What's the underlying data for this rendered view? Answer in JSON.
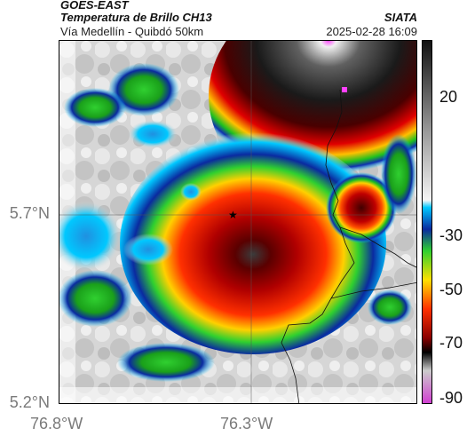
{
  "header": {
    "satellite": "GOES-EAST",
    "product": "Temperatura de Brillo CH13",
    "route": "Vía Medellín - Quibdó 50km",
    "organization": "SIATA",
    "timestamp": "2025-02-28 16:09"
  },
  "axes": {
    "y_ticks": [
      "5.7°N",
      "5.2°N"
    ],
    "x_ticks": [
      "76.8°W",
      "76.3°W"
    ]
  },
  "colorbar": {
    "labels": [
      "20",
      "-30",
      "-50",
      "-70",
      "-90"
    ]
  }
}
